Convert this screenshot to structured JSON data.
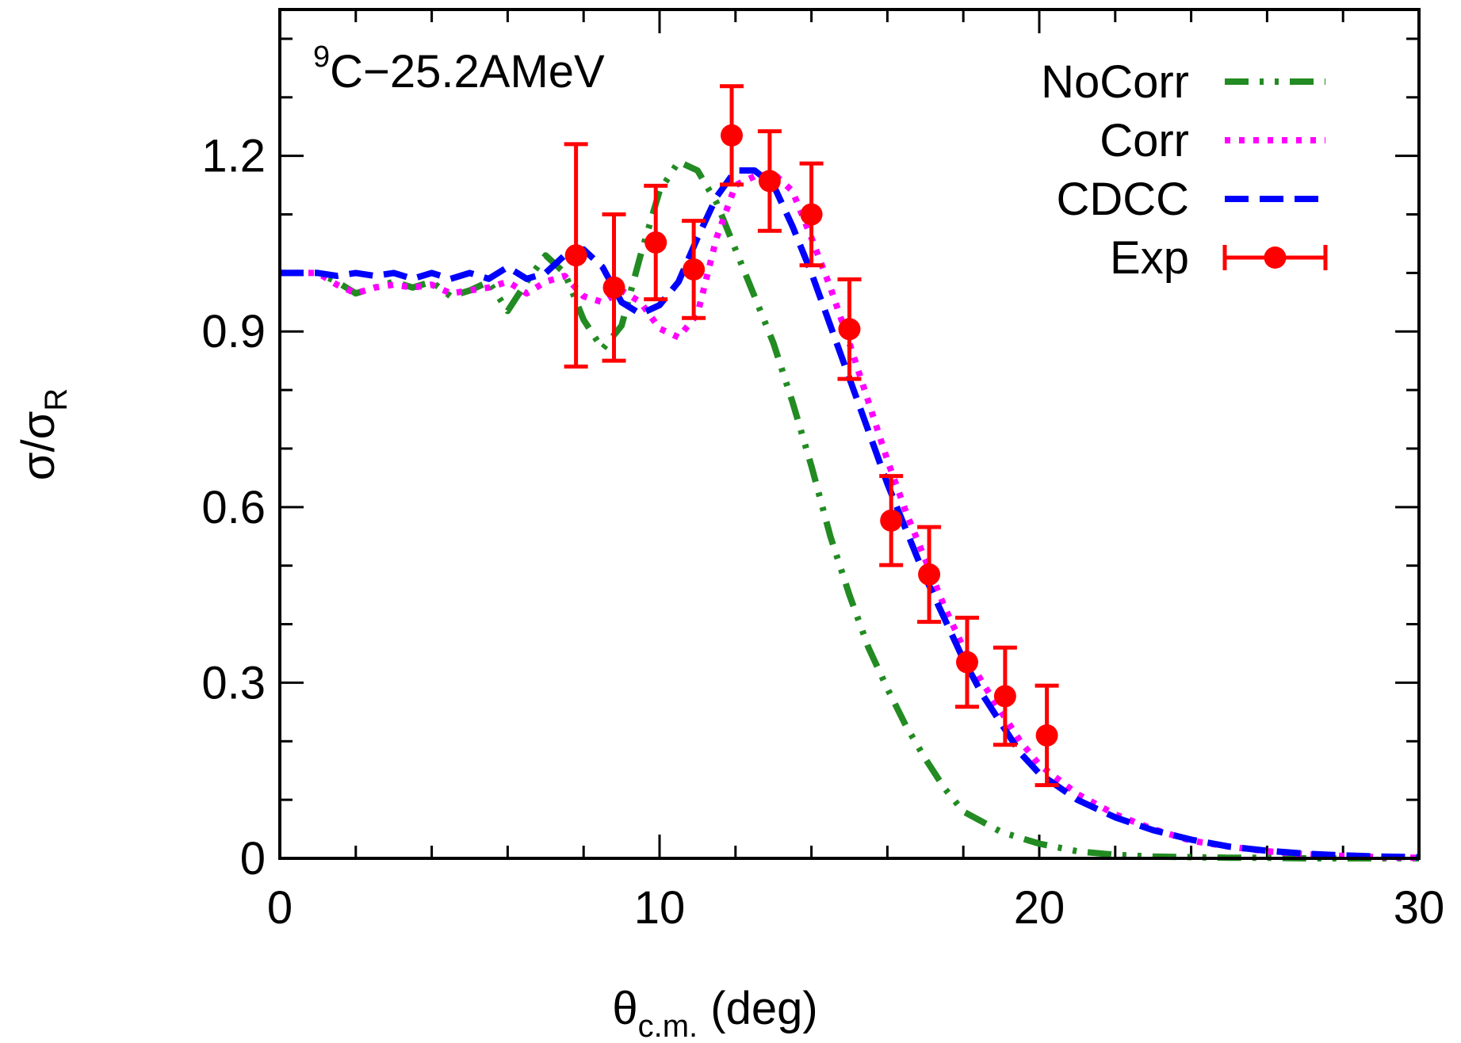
{
  "chart_data": {
    "type": "line",
    "annotation": {
      "superscript": "9",
      "text": "C−25.2AMeV"
    },
    "xlabel": {
      "symbol": "θ",
      "subscript": "c.m.",
      "rest": " (deg)"
    },
    "ylabel": {
      "sigma": "σ",
      "slash": "/",
      "sigma2": "σ",
      "subscript": "R"
    },
    "xlim": [
      0,
      30
    ],
    "ylim": [
      0,
      1.45
    ],
    "xticks": [
      0,
      10,
      20,
      30
    ],
    "xticks_minor": [
      0,
      2,
      4,
      6,
      8,
      10,
      12,
      14,
      16,
      18,
      20,
      22,
      24,
      26,
      28,
      30
    ],
    "yticks": [
      0,
      0.3,
      0.6,
      0.9,
      1.2
    ],
    "ytick_labels": [
      "0",
      "0.3",
      "0.6",
      "0.9",
      "1.2"
    ],
    "yticks_minor": [
      0,
      0.1,
      0.2,
      0.3,
      0.4,
      0.5,
      0.6,
      0.7,
      0.8,
      0.9,
      1.0,
      1.1,
      1.2,
      1.3,
      1.4
    ],
    "legend_position": "top-right",
    "colors": {
      "nocorr": "#228b22",
      "corr": "#ff00ff",
      "cdcc": "#0000ff",
      "exp": "#ff0000"
    },
    "series": [
      {
        "name": "NoCorr",
        "style": "dash-dot-dot",
        "x": [
          0,
          1,
          1.5,
          2,
          2.5,
          3,
          3.5,
          4,
          4.5,
          5,
          5.5,
          6,
          6.5,
          7,
          7.5,
          8,
          8.5,
          9,
          9.5,
          10,
          10.5,
          11,
          11.5,
          12,
          12.5,
          13,
          13.5,
          14,
          14.5,
          15,
          15.5,
          16,
          16.5,
          17,
          17.5,
          18,
          19,
          20,
          21,
          22,
          23,
          24,
          25,
          26,
          27,
          28,
          29,
          30
        ],
        "y": [
          1.0,
          1.0,
          0.985,
          0.965,
          0.975,
          0.985,
          0.975,
          0.985,
          0.96,
          0.97,
          0.985,
          0.935,
          0.985,
          1.03,
          1.0,
          0.92,
          0.87,
          0.91,
          1.03,
          1.14,
          1.19,
          1.175,
          1.12,
          1.04,
          0.96,
          0.88,
          0.78,
          0.67,
          0.55,
          0.45,
          0.36,
          0.29,
          0.225,
          0.17,
          0.12,
          0.08,
          0.045,
          0.025,
          0.012,
          0.006,
          0.003,
          0.002,
          0.001,
          0.001,
          0.0,
          0.0,
          0.0,
          0.0
        ]
      },
      {
        "name": "Corr",
        "style": "dotted",
        "x": [
          0,
          1,
          1.5,
          2,
          2.5,
          3,
          3.5,
          4,
          4.5,
          5,
          5.5,
          6,
          6.5,
          7,
          7.5,
          8,
          8.5,
          9,
          9.5,
          10,
          10.5,
          11,
          11.5,
          12,
          12.5,
          13,
          13.5,
          14,
          14.5,
          15,
          15.5,
          16,
          16.5,
          17,
          17.5,
          18,
          18.5,
          19,
          19.5,
          20,
          21,
          22,
          23,
          24,
          25,
          26,
          27,
          28,
          29,
          30
        ],
        "y": [
          1.0,
          1.0,
          0.98,
          0.965,
          0.975,
          0.98,
          0.975,
          0.98,
          0.965,
          0.97,
          0.975,
          0.985,
          0.965,
          0.985,
          0.995,
          0.96,
          0.95,
          0.97,
          0.95,
          0.905,
          0.89,
          0.93,
          1.06,
          1.15,
          1.165,
          1.17,
          1.14,
          1.06,
          0.975,
          0.88,
          0.78,
          0.68,
          0.59,
          0.51,
          0.43,
          0.36,
          0.3,
          0.25,
          0.2,
          0.16,
          0.11,
          0.075,
          0.05,
          0.03,
          0.02,
          0.012,
          0.007,
          0.004,
          0.002,
          0.001
        ]
      },
      {
        "name": "CDCC",
        "style": "dashed",
        "x": [
          0,
          1,
          1.5,
          2,
          2.5,
          3,
          3.5,
          4,
          4.5,
          5,
          5.5,
          6,
          6.5,
          7,
          7.5,
          8,
          8.5,
          9,
          9.5,
          10,
          10.5,
          11,
          11.5,
          12,
          12.5,
          13,
          13.5,
          14,
          14.5,
          15,
          15.5,
          16,
          16.5,
          17,
          17.5,
          18,
          18.5,
          19,
          19.5,
          20,
          21,
          22,
          23,
          24,
          25,
          26,
          27,
          28,
          29,
          30
        ],
        "y": [
          1.0,
          1.0,
          0.995,
          1.0,
          0.995,
          1.0,
          0.99,
          1.0,
          0.99,
          1.0,
          0.99,
          1.01,
          0.99,
          1.0,
          1.03,
          1.04,
          1.01,
          0.95,
          0.93,
          0.945,
          0.985,
          1.06,
          1.13,
          1.175,
          1.175,
          1.15,
          1.08,
          1.0,
          0.91,
          0.82,
          0.73,
          0.64,
          0.56,
          0.48,
          0.41,
          0.34,
          0.28,
          0.23,
          0.18,
          0.145,
          0.1,
          0.07,
          0.048,
          0.032,
          0.02,
          0.013,
          0.008,
          0.005,
          0.003,
          0.002
        ]
      }
    ],
    "exp": {
      "name": "Exp",
      "x": [
        7.8,
        8.8,
        9.9,
        10.9,
        11.9,
        12.9,
        14.0,
        15.0,
        16.1,
        17.1,
        18.1,
        19.1,
        20.2
      ],
      "y": [
        1.03,
        0.975,
        1.052,
        1.006,
        1.235,
        1.157,
        1.1,
        0.904,
        0.577,
        0.485,
        0.335,
        0.277,
        0.21
      ],
      "err": [
        0.19,
        0.125,
        0.097,
        0.083,
        0.084,
        0.085,
        0.087,
        0.085,
        0.076,
        0.081,
        0.076,
        0.083,
        0.085
      ]
    }
  }
}
